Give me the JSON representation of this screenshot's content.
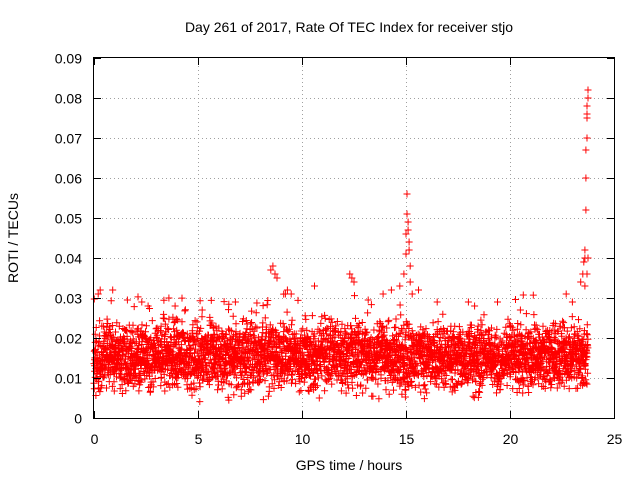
{
  "chart_data": {
    "type": "scatter",
    "title": "Day 261 of 2017, Rate Of TEC Index for receiver stjo",
    "xlabel": "GPS time / hours",
    "ylabel": "ROTI / TECUs",
    "xlim": [
      0,
      25
    ],
    "ylim": [
      0,
      0.09
    ],
    "xticks": [
      0,
      5,
      10,
      15,
      20,
      25
    ],
    "xtick_labels": [
      "0",
      "5",
      "10",
      "15",
      "20",
      "25"
    ],
    "yticks": [
      0,
      0.01,
      0.02,
      0.03,
      0.04,
      0.05,
      0.06,
      0.07,
      0.08,
      0.09
    ],
    "ytick_labels": [
      "0",
      "0.01",
      "0.02",
      "0.03",
      "0.04",
      "0.05",
      "0.06",
      "0.07",
      "0.08",
      "0.09"
    ],
    "grid": true,
    "marker": "+",
    "color": "#ff0000",
    "x_range_of_data": [
      0,
      23.75
    ],
    "series": [
      {
        "name": "ROTI",
        "bulk": {
          "description": "dense band of observations roughly every 0.02 h",
          "x_start": 0,
          "x_end": 23.75,
          "y_low": 0.004,
          "y_high": 0.027
        },
        "points": [
          {
            "x": 0.2,
            "y": 0.031
          },
          {
            "x": 0.3,
            "y": 0.032
          },
          {
            "x": 0.9,
            "y": 0.032
          },
          {
            "x": 2.3,
            "y": 0.029
          },
          {
            "x": 2.6,
            "y": 0.028
          },
          {
            "x": 3.6,
            "y": 0.03
          },
          {
            "x": 3.9,
            "y": 0.028
          },
          {
            "x": 5.2,
            "y": 0.027
          },
          {
            "x": 6.8,
            "y": 0.029
          },
          {
            "x": 8.5,
            "y": 0.037
          },
          {
            "x": 8.6,
            "y": 0.038
          },
          {
            "x": 8.7,
            "y": 0.036
          },
          {
            "x": 8.8,
            "y": 0.035
          },
          {
            "x": 9.2,
            "y": 0.031
          },
          {
            "x": 9.3,
            "y": 0.032
          },
          {
            "x": 10.6,
            "y": 0.033
          },
          {
            "x": 12.3,
            "y": 0.036
          },
          {
            "x": 12.4,
            "y": 0.035
          },
          {
            "x": 12.5,
            "y": 0.034
          },
          {
            "x": 13.9,
            "y": 0.031
          },
          {
            "x": 14.3,
            "y": 0.032
          },
          {
            "x": 14.7,
            "y": 0.033
          },
          {
            "x": 14.9,
            "y": 0.036
          },
          {
            "x": 15.0,
            "y": 0.041
          },
          {
            "x": 15.0,
            "y": 0.046
          },
          {
            "x": 15.05,
            "y": 0.056
          },
          {
            "x": 15.05,
            "y": 0.051
          },
          {
            "x": 15.1,
            "y": 0.049
          },
          {
            "x": 15.1,
            "y": 0.047
          },
          {
            "x": 15.15,
            "y": 0.044
          },
          {
            "x": 15.15,
            "y": 0.042
          },
          {
            "x": 15.2,
            "y": 0.038
          },
          {
            "x": 15.2,
            "y": 0.034
          },
          {
            "x": 15.3,
            "y": 0.031
          },
          {
            "x": 15.6,
            "y": 0.032
          },
          {
            "x": 16.5,
            "y": 0.029
          },
          {
            "x": 18.0,
            "y": 0.029
          },
          {
            "x": 18.3,
            "y": 0.028
          },
          {
            "x": 19.4,
            "y": 0.029
          },
          {
            "x": 20.5,
            "y": 0.027
          },
          {
            "x": 22.7,
            "y": 0.031
          },
          {
            "x": 23.0,
            "y": 0.029
          },
          {
            "x": 23.4,
            "y": 0.034
          },
          {
            "x": 23.5,
            "y": 0.036
          },
          {
            "x": 23.55,
            "y": 0.039
          },
          {
            "x": 23.6,
            "y": 0.042
          },
          {
            "x": 23.6,
            "y": 0.04
          },
          {
            "x": 23.65,
            "y": 0.052
          },
          {
            "x": 23.65,
            "y": 0.06
          },
          {
            "x": 23.65,
            "y": 0.067
          },
          {
            "x": 23.7,
            "y": 0.07
          },
          {
            "x": 23.7,
            "y": 0.075
          },
          {
            "x": 23.7,
            "y": 0.076
          },
          {
            "x": 23.7,
            "y": 0.078
          },
          {
            "x": 23.75,
            "y": 0.08
          },
          {
            "x": 23.75,
            "y": 0.082
          },
          {
            "x": 23.75,
            "y": 0.04
          },
          {
            "x": 23.7,
            "y": 0.036
          },
          {
            "x": 23.6,
            "y": 0.033
          }
        ]
      }
    ]
  }
}
